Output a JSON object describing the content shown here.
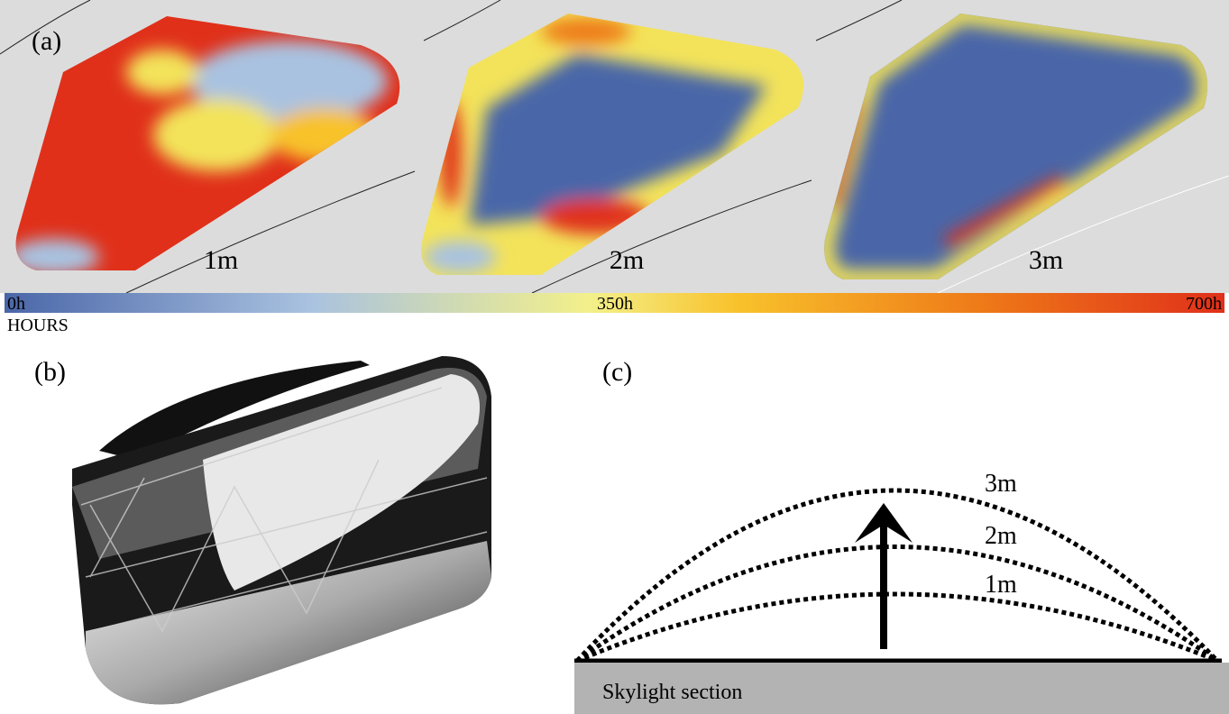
{
  "panel_a": {
    "label": "(a)",
    "maps": [
      "1m",
      "2m",
      "3m"
    ],
    "colorbar": {
      "min_label": "0h",
      "mid_label": "350h",
      "max_label": "700h",
      "unit": "HOURS"
    }
  },
  "panel_b": {
    "label": "(b)"
  },
  "panel_c": {
    "label": "(c)",
    "domes": [
      "3m",
      "2m",
      "1m"
    ],
    "base_label": "Skylight section"
  }
}
